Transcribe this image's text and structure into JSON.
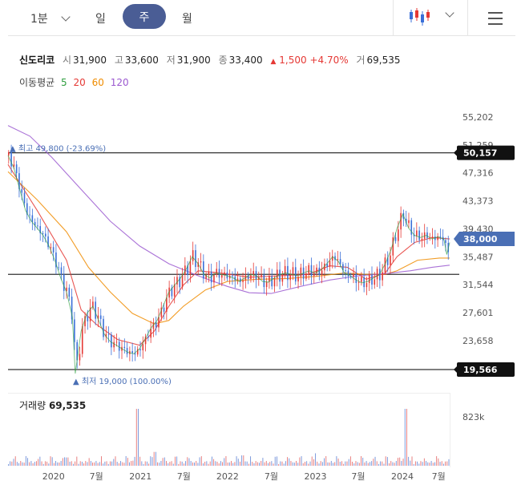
{
  "toolbar": {
    "interval": "1분",
    "tabs": [
      "일",
      "주",
      "월"
    ],
    "selected_tab": "주"
  },
  "stock": {
    "name": "신도리코",
    "open_label": "시",
    "open": "31,900",
    "high_label": "고",
    "high": "33,600",
    "low_label": "저",
    "low": "31,900",
    "close_label": "종",
    "close": "33,400",
    "change": "1,500",
    "change_pct": "+4.70%",
    "volume_label": "거",
    "volume": "69,535"
  },
  "moving_averages": {
    "label": "이동평균",
    "periods": [
      "5",
      "20",
      "60",
      "120"
    ],
    "colors": [
      "#2e9e3e",
      "#e53935",
      "#f08c00",
      "#9b59d0"
    ]
  },
  "volume_panel": {
    "title": "거래량",
    "value": "69,535",
    "axis_max": "823k"
  },
  "chart_data": {
    "type": "candlestick",
    "y_ticks": [
      "55,202",
      "51,259",
      "47,316",
      "43,373",
      "39,430",
      "35,487",
      "31,544",
      "27,601",
      "23,658"
    ],
    "ylim": [
      19566,
      55202
    ],
    "x_ticks": [
      "2020",
      "7월",
      "2021",
      "7월",
      "2022",
      "7월",
      "2023",
      "7월",
      "2024",
      "7월"
    ],
    "reference_lines": [
      {
        "value": 50157,
        "label": "50,157"
      },
      {
        "value": 33000,
        "label": ""
      },
      {
        "value": 19566,
        "label": "19,566"
      }
    ],
    "current_price": {
      "value": 38000,
      "label": "38,000"
    },
    "high_annotation": "최고 49,800 (-23.69%)",
    "low_annotation": "최저 19,000 (100.00%)",
    "price_path": [
      [
        0,
        49800
      ],
      [
        4,
        48000
      ],
      [
        8,
        45000
      ],
      [
        12,
        42000
      ],
      [
        16,
        40500
      ],
      [
        20,
        39500
      ],
      [
        24,
        38500
      ],
      [
        28,
        37000
      ],
      [
        32,
        35000
      ],
      [
        36,
        32500
      ],
      [
        40,
        30500
      ],
      [
        44,
        27000
      ],
      [
        46,
        19000
      ],
      [
        50,
        25000
      ],
      [
        54,
        27500
      ],
      [
        58,
        28500
      ],
      [
        62,
        26500
      ],
      [
        66,
        24500
      ],
      [
        70,
        23500
      ],
      [
        74,
        23000
      ],
      [
        78,
        22500
      ],
      [
        82,
        22000
      ],
      [
        86,
        21800
      ],
      [
        90,
        22500
      ],
      [
        94,
        24000
      ],
      [
        98,
        25500
      ],
      [
        102,
        26500
      ],
      [
        106,
        28500
      ],
      [
        110,
        30500
      ],
      [
        114,
        31500
      ],
      [
        118,
        32500
      ],
      [
        122,
        33800
      ],
      [
        126,
        35500
      ],
      [
        130,
        34500
      ],
      [
        134,
        33000
      ],
      [
        138,
        32500
      ],
      [
        142,
        33200
      ],
      [
        146,
        33000
      ],
      [
        150,
        32800
      ],
      [
        154,
        32500
      ],
      [
        158,
        32000
      ],
      [
        162,
        32500
      ],
      [
        166,
        33000
      ],
      [
        170,
        32800
      ],
      [
        174,
        32000
      ],
      [
        178,
        31900
      ],
      [
        182,
        32500
      ],
      [
        186,
        33000
      ],
      [
        190,
        33200
      ],
      [
        194,
        33000
      ],
      [
        198,
        32800
      ],
      [
        202,
        33200
      ],
      [
        206,
        33500
      ],
      [
        210,
        33200
      ],
      [
        214,
        33600
      ],
      [
        218,
        34500
      ],
      [
        222,
        35500
      ],
      [
        226,
        34800
      ],
      [
        230,
        33200
      ],
      [
        234,
        32800
      ],
      [
        238,
        32200
      ],
      [
        242,
        31800
      ],
      [
        246,
        32000
      ],
      [
        250,
        32500
      ],
      [
        254,
        33000
      ],
      [
        258,
        34500
      ],
      [
        262,
        36500
      ],
      [
        266,
        39500
      ],
      [
        270,
        41500
      ],
      [
        274,
        39500
      ],
      [
        278,
        38500
      ],
      [
        282,
        38200
      ],
      [
        286,
        38500
      ],
      [
        290,
        38000
      ],
      [
        294,
        38300
      ],
      [
        298,
        38000
      ],
      [
        300,
        35800
      ],
      [
        302,
        37500
      ]
    ],
    "ma_lines": [
      {
        "period": "20",
        "color": "#e53935",
        "points": [
          [
            0,
            48500
          ],
          [
            20,
            42000
          ],
          [
            40,
            35000
          ],
          [
            50,
            28000
          ],
          [
            60,
            26000
          ],
          [
            75,
            23800
          ],
          [
            90,
            23000
          ],
          [
            100,
            25000
          ],
          [
            110,
            28500
          ],
          [
            120,
            31500
          ],
          [
            130,
            33500
          ],
          [
            145,
            33200
          ],
          [
            165,
            32600
          ],
          [
            185,
            32800
          ],
          [
            205,
            33000
          ],
          [
            220,
            34200
          ],
          [
            232,
            34000
          ],
          [
            245,
            32300
          ],
          [
            258,
            33200
          ],
          [
            266,
            35500
          ],
          [
            278,
            37500
          ],
          [
            290,
            38200
          ],
          [
            302,
            38000
          ]
        ]
      },
      {
        "period": "60",
        "color": "#f08c00",
        "points": [
          [
            0,
            47500
          ],
          [
            20,
            43500
          ],
          [
            40,
            39000
          ],
          [
            55,
            34000
          ],
          [
            70,
            30500
          ],
          [
            85,
            27500
          ],
          [
            100,
            26000
          ],
          [
            110,
            26500
          ],
          [
            120,
            28500
          ],
          [
            135,
            30800
          ],
          [
            150,
            32000
          ],
          [
            170,
            32300
          ],
          [
            190,
            32400
          ],
          [
            210,
            32700
          ],
          [
            230,
            33200
          ],
          [
            245,
            33000
          ],
          [
            258,
            33000
          ],
          [
            266,
            33500
          ],
          [
            280,
            35000
          ],
          [
            295,
            35300
          ],
          [
            302,
            35300
          ]
        ]
      },
      {
        "period": "120",
        "color": "#9b59d0",
        "points": [
          [
            0,
            54000
          ],
          [
            15,
            52500
          ],
          [
            30,
            49500
          ],
          [
            50,
            45000
          ],
          [
            70,
            40500
          ],
          [
            90,
            37000
          ],
          [
            110,
            34500
          ],
          [
            130,
            32800
          ],
          [
            150,
            31300
          ],
          [
            165,
            30400
          ],
          [
            180,
            30300
          ],
          [
            200,
            31300
          ],
          [
            220,
            32200
          ],
          [
            240,
            32800
          ],
          [
            258,
            33100
          ],
          [
            275,
            33500
          ],
          [
            290,
            34000
          ],
          [
            302,
            34300
          ]
        ]
      }
    ],
    "volume_spikes": [
      [
        88,
        823
      ],
      [
        272,
        823
      ],
      [
        40,
        120
      ],
      [
        100,
        200
      ],
      [
        160,
        150
      ],
      [
        210,
        180
      ]
    ]
  }
}
